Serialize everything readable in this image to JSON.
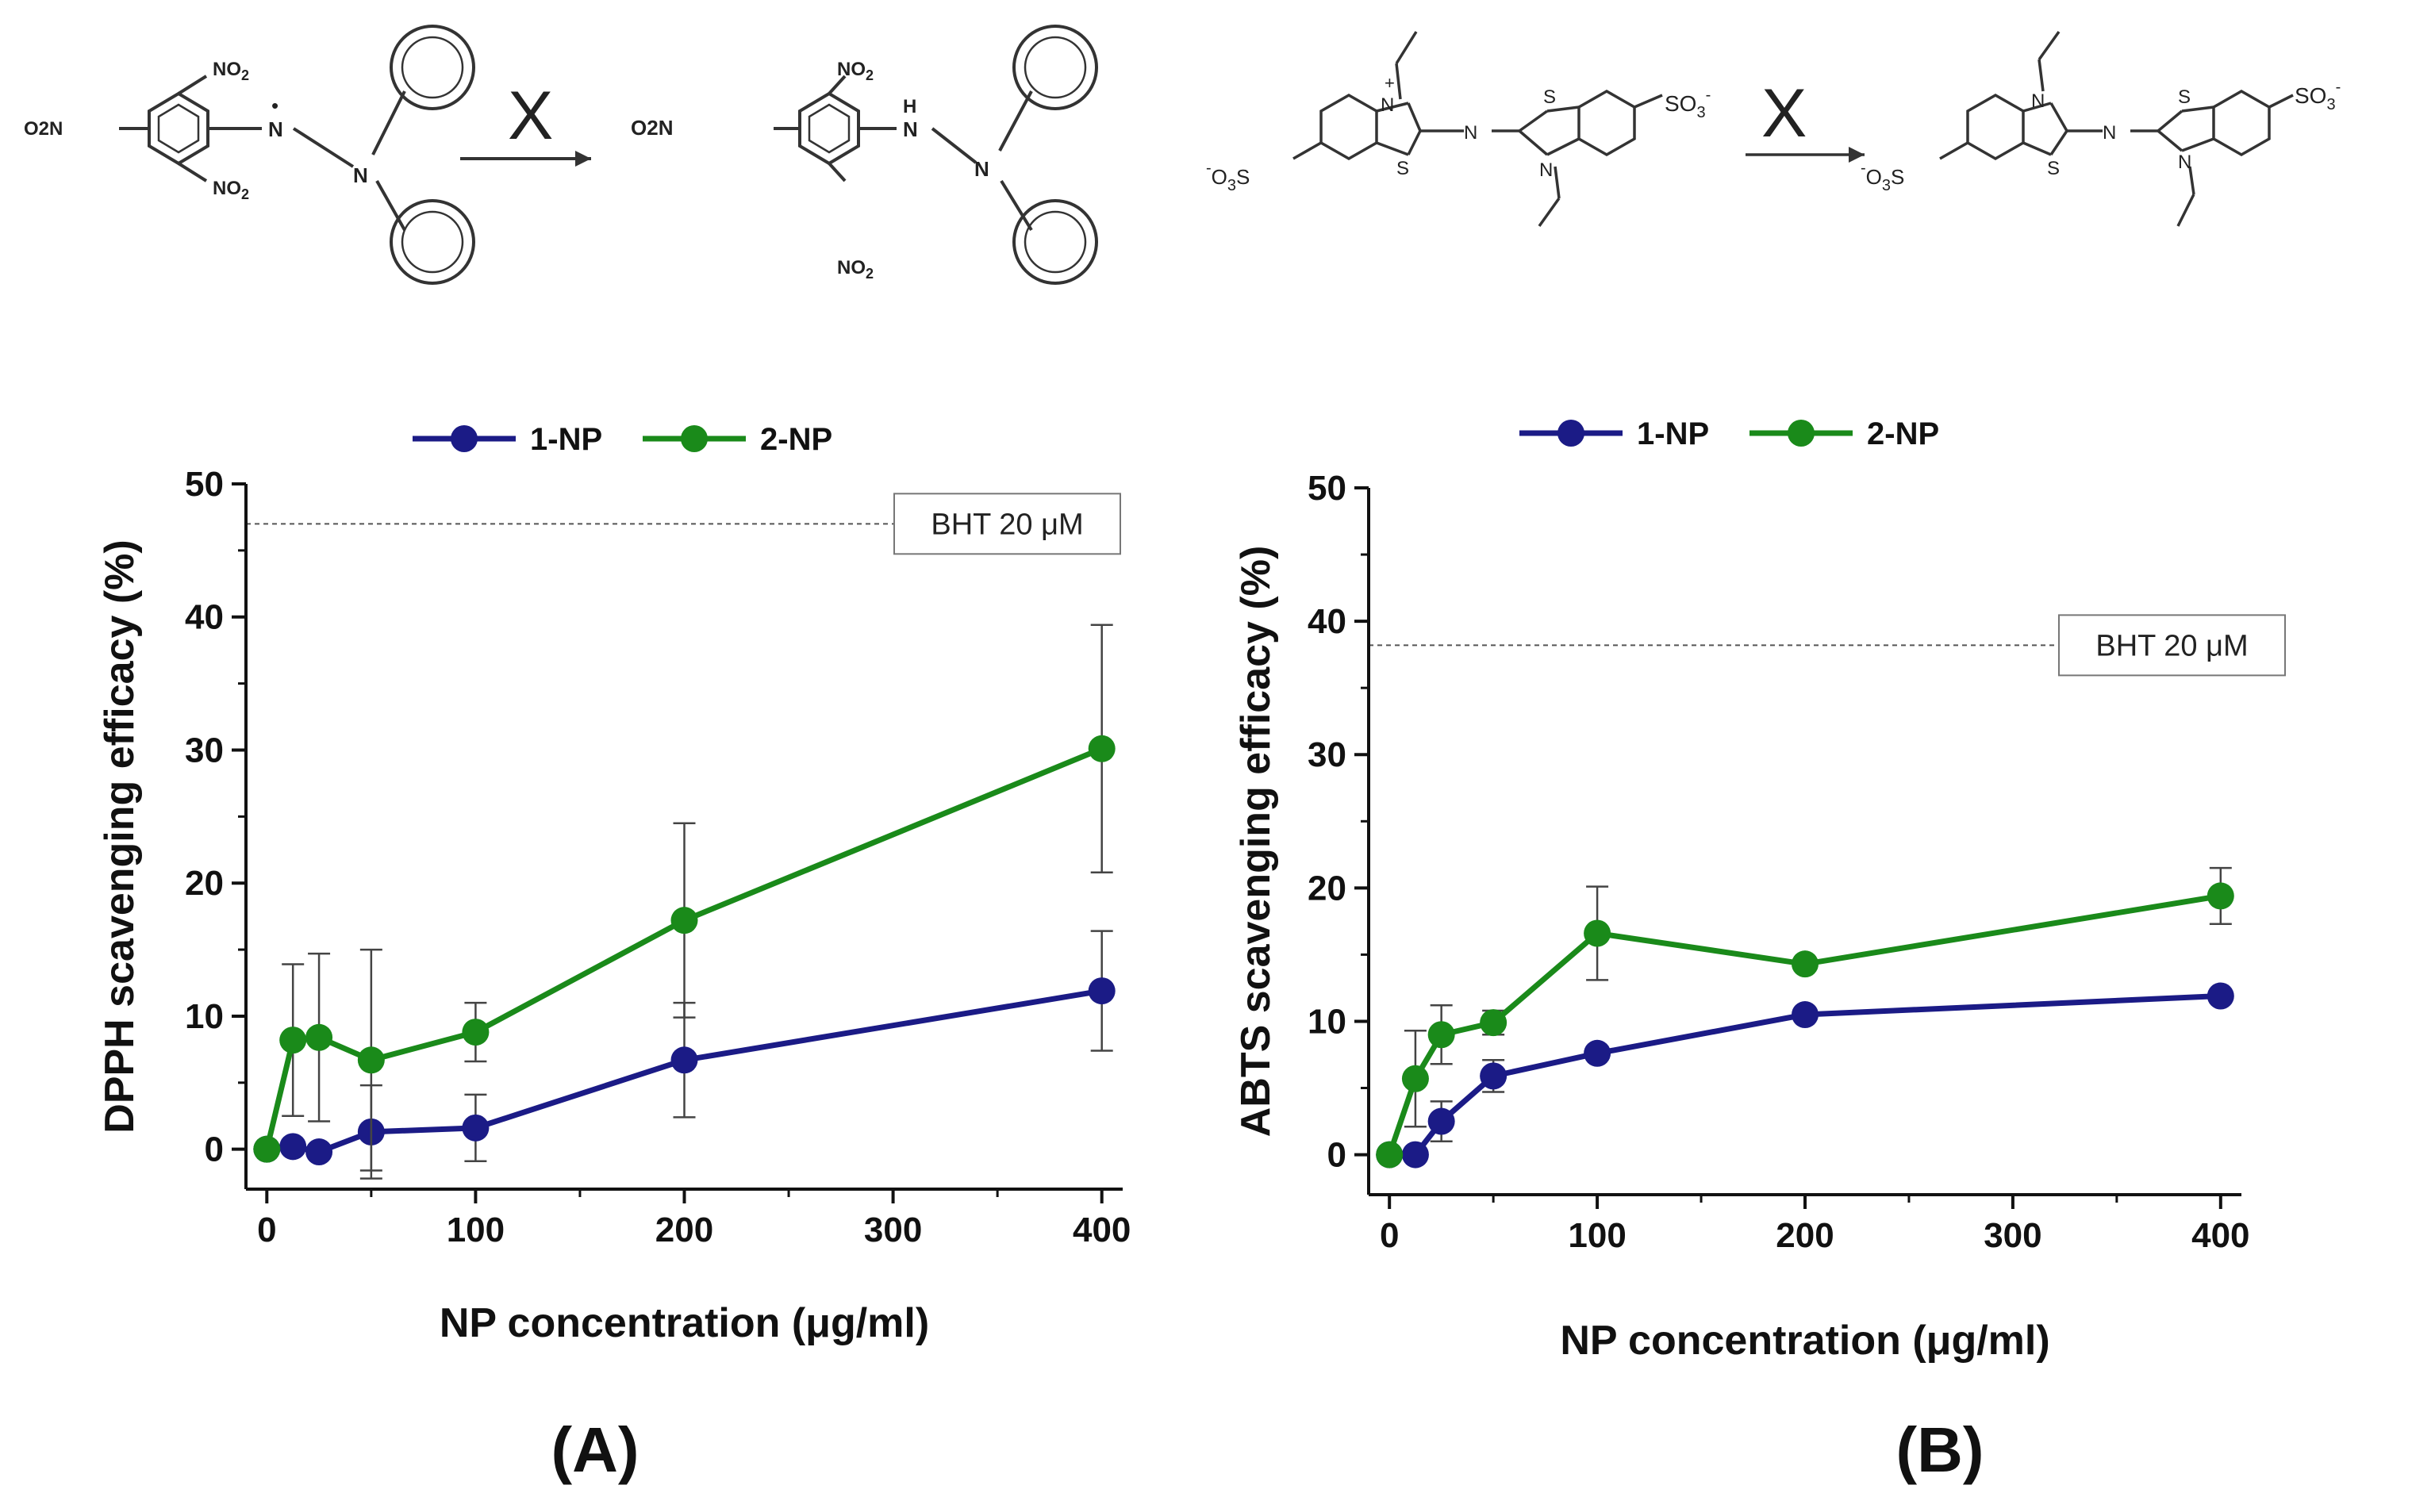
{
  "schemes": {
    "left": {
      "no2": "NO",
      "two": "2",
      "o2n": "O",
      "n2": "2N",
      "n_atom": "N",
      "h_atom": "H",
      "dot": "•",
      "inhibit": "X"
    },
    "right": {
      "s_atom": "S",
      "n_atom": "N",
      "so3": "SO",
      "sub3": "3",
      "minus": "-",
      "plus": "+",
      "o3s": "O",
      "s_suffix": "S",
      "inhibit": "X"
    }
  },
  "chart_data": [
    {
      "id": "A",
      "type": "line",
      "panel_label": "(A)",
      "xlabel": "NP concentration (μg/ml)",
      "ylabel": "DPPH scavenging efficacy (%)",
      "xlim": [
        -10,
        410
      ],
      "ylim": [
        -3,
        50
      ],
      "xticks": [
        0,
        100,
        200,
        300,
        400
      ],
      "yticks": [
        0,
        10,
        20,
        30,
        40,
        50
      ],
      "reference": {
        "label": "BHT 20 μM",
        "value": 47
      },
      "legend": [
        "1-NP",
        "2-NP"
      ],
      "series": [
        {
          "name": "1-NP",
          "color": "#1b1b86",
          "x": [
            0,
            12.5,
            25,
            50,
            100,
            200,
            400
          ],
          "y": [
            0,
            0.2,
            -0.2,
            1.3,
            1.6,
            6.7,
            11.9
          ],
          "err": [
            0,
            0,
            0,
            3.5,
            2.5,
            4.3,
            4.5
          ]
        },
        {
          "name": "2-NP",
          "color": "#1a8a1a",
          "x": [
            0,
            12.5,
            25,
            50,
            100,
            200,
            400
          ],
          "y": [
            0,
            8.2,
            8.4,
            6.7,
            8.8,
            17.2,
            30.1
          ],
          "err": [
            0,
            5.7,
            6.3,
            8.3,
            2.2,
            7.3,
            9.3
          ]
        }
      ]
    },
    {
      "id": "B",
      "type": "line",
      "panel_label": "(B)",
      "xlabel": "NP concentration (μg/ml)",
      "ylabel": "ABTS scavenging efficacy (%)",
      "xlim": [
        -10,
        410
      ],
      "ylim": [
        -3,
        50
      ],
      "xticks": [
        0,
        100,
        200,
        300,
        400
      ],
      "yticks": [
        0,
        10,
        20,
        30,
        40,
        50
      ],
      "reference": {
        "label": "BHT 20 μM",
        "value": 38.2
      },
      "legend": [
        "1-NP",
        "2-NP"
      ],
      "series": [
        {
          "name": "1-NP",
          "color": "#1b1b86",
          "x": [
            0,
            12.5,
            25,
            50,
            100,
            200,
            400
          ],
          "y": [
            0,
            0,
            2.5,
            5.9,
            7.6,
            10.5,
            11.9
          ],
          "err": [
            0,
            0,
            1.5,
            1.2,
            0.5,
            0.3,
            0.5
          ]
        },
        {
          "name": "2-NP",
          "color": "#1a8a1a",
          "x": [
            0,
            12.5,
            25,
            50,
            100,
            200,
            400
          ],
          "y": [
            0,
            5.7,
            9.0,
            9.9,
            16.6,
            14.3,
            19.4
          ],
          "err": [
            0,
            3.6,
            2.2,
            0.9,
            3.5,
            0.4,
            2.1
          ]
        }
      ]
    }
  ]
}
